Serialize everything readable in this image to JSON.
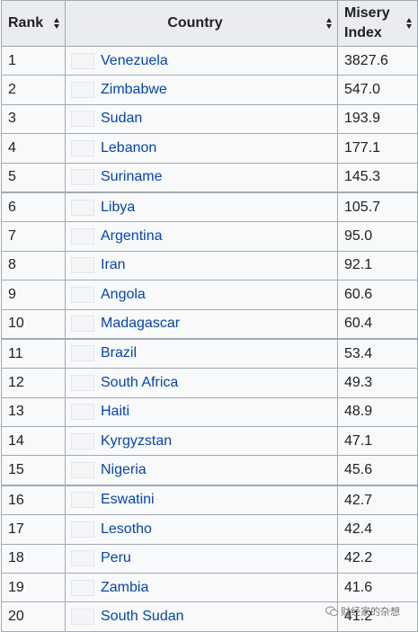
{
  "headers": {
    "rank": "Rank",
    "country": "Country",
    "misery_line1": "Misery",
    "misery_line2": "Index"
  },
  "rows": [
    {
      "rank": "1",
      "country": "Venezuela",
      "index": "3827.6"
    },
    {
      "rank": "2",
      "country": "Zimbabwe",
      "index": "547.0"
    },
    {
      "rank": "3",
      "country": "Sudan",
      "index": "193.9"
    },
    {
      "rank": "4",
      "country": "Lebanon",
      "index": "177.1"
    },
    {
      "rank": "5",
      "country": "Suriname",
      "index": "145.3"
    },
    {
      "rank": "6",
      "country": "Libya",
      "index": "105.7"
    },
    {
      "rank": "7",
      "country": "Argentina",
      "index": "95.0"
    },
    {
      "rank": "8",
      "country": "Iran",
      "index": "92.1"
    },
    {
      "rank": "9",
      "country": "Angola",
      "index": "60.6"
    },
    {
      "rank": "10",
      "country": "Madagascar",
      "index": "60.4"
    },
    {
      "rank": "11",
      "country": "Brazil",
      "index": "53.4"
    },
    {
      "rank": "12",
      "country": "South Africa",
      "index": "49.3"
    },
    {
      "rank": "13",
      "country": "Haiti",
      "index": "48.9"
    },
    {
      "rank": "14",
      "country": "Kyrgyzstan",
      "index": "47.1"
    },
    {
      "rank": "15",
      "country": "Nigeria",
      "index": "45.6"
    },
    {
      "rank": "16",
      "country": "Eswatini",
      "index": "42.7"
    },
    {
      "rank": "17",
      "country": "Lesotho",
      "index": "42.4"
    },
    {
      "rank": "18",
      "country": "Peru",
      "index": "42.2"
    },
    {
      "rank": "19",
      "country": "Zambia",
      "index": "41.6"
    },
    {
      "rank": "20",
      "country": "South Sudan",
      "index": "41.2"
    }
  ],
  "watermark": {
    "text": "财经家的杂想",
    "icon": "wechat-icon"
  },
  "colors": {
    "link": "#0645ad",
    "header_bg": "#eaecf0",
    "row_bg": "#f8f9fa",
    "border": "#a2a9b1"
  }
}
